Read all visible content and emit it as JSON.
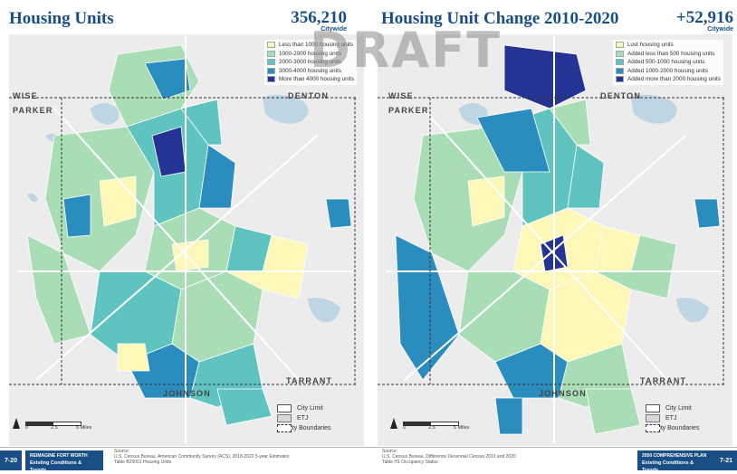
{
  "left": {
    "title": "Housing Units",
    "total": "356,210",
    "citywide": "Citywide",
    "legend": [
      {
        "label": "Less than 1000 housing units",
        "color": "#fdf7b8"
      },
      {
        "label": "1000-2000 housing units",
        "color": "#a8ddb5"
      },
      {
        "label": "2000-3000 housing units",
        "color": "#5fc4c0"
      },
      {
        "label": "3000-4000 housing units",
        "color": "#2b8cbe"
      },
      {
        "label": "More than 4000 housing units",
        "color": "#253494"
      }
    ]
  },
  "right": {
    "title": "Housing Unit Change 2010-2020",
    "total": "+52,916",
    "citywide": "Citywide",
    "legend": [
      {
        "label": "Lost housing units",
        "color": "#fdf7b8"
      },
      {
        "label": "Added less than 500 housing units",
        "color": "#a8ddb5"
      },
      {
        "label": "Added 500-1000 housing units",
        "color": "#5fc4c0"
      },
      {
        "label": "Added 1000-2000 housing units",
        "color": "#2b8cbe"
      },
      {
        "label": "Added more than 2000 housing units",
        "color": "#253494"
      }
    ]
  },
  "boundary_legend": {
    "city_limit": "City Limit",
    "etj": "ETJ",
    "county": "County Boundaries"
  },
  "counties": {
    "wise": "WISE",
    "parker": "PARKER",
    "denton": "DENTON",
    "tarrant": "TARRANT",
    "johnson": "JOHNSON"
  },
  "scale": {
    "zero": "0",
    "mid": "2.5",
    "end": "5 Miles"
  },
  "watermark": "DRAFT",
  "footer": {
    "left_page": "7-20",
    "left_badge_1": "REIMAGINE FORT WORTH",
    "left_badge_2": "Existing Conditions & Trends",
    "left_source_1": "Source:",
    "left_source_2": "U.S. Census Bureau, American Community Survey (ACS), 2018-2022 5-year Estimates",
    "left_source_3": "Table B25001 Housing Units",
    "right_source_1": "Source:",
    "right_source_2": "U.S. Census Bureau, Difference Decennial Census 2010 and 2020",
    "right_source_3": "Table H1 Occupancy Status",
    "right_badge_1": "2050 COMPREHENSIVE PLAN",
    "right_badge_2": "Existing Conditions & Trends",
    "right_page": "7-21"
  },
  "colors": {
    "accent": "#1a4f86",
    "water": "#b9d3e3",
    "road": "#ffffff",
    "background": "#ededed"
  }
}
